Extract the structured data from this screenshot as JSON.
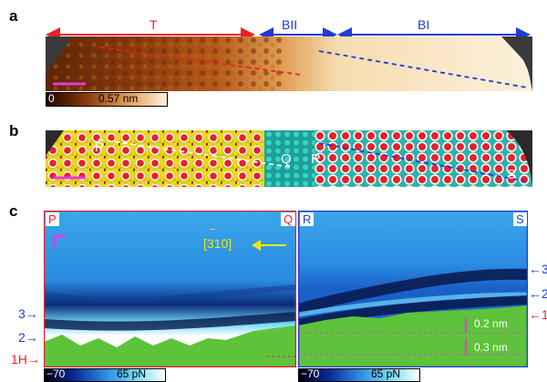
{
  "panels": {
    "a": {
      "label": "a",
      "regions": {
        "T": "T",
        "B_II": "BII",
        "B_I": "BI"
      },
      "colorbar": {
        "min": "0",
        "max": "0.57 nm"
      }
    },
    "b": {
      "label": "b",
      "points": {
        "P": "P",
        "Q": "Q",
        "R": "R",
        "S": "S"
      }
    },
    "c": {
      "label": "c",
      "left": {
        "corner_left": "P",
        "corner_right": "Q"
      },
      "right": {
        "corner_left": "R",
        "corner_right": "S"
      },
      "direction": "[310]",
      "direction_bar": "‾",
      "left_markers": [
        "3",
        "2",
        "1H"
      ],
      "right_markers": [
        "3",
        "2",
        "1"
      ],
      "heights": [
        "0.2 nm",
        "0.3 nm"
      ],
      "colorbar_left": {
        "min": "−70",
        "max": "65 pN"
      },
      "colorbar_right": {
        "min": "−70",
        "max": "65 pN"
      }
    }
  },
  "colors": {
    "red": "#e8202a",
    "blue": "#1f3bd6",
    "magenta": "#e63ad8",
    "yellow": "#f2e600",
    "green": "#5dc33a"
  }
}
